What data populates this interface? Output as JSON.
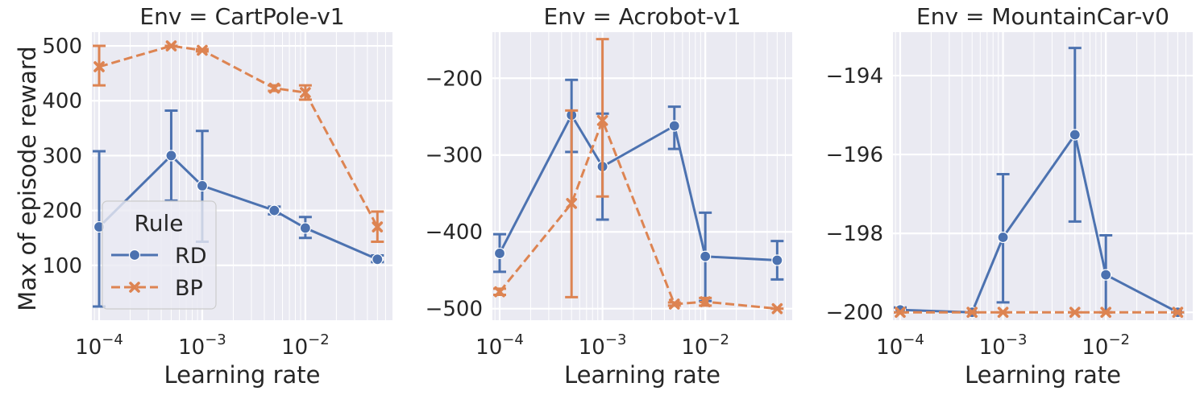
{
  "figure": {
    "ylabel": "Max of episode reward"
  },
  "legend": {
    "title": "Rule",
    "placement": "lower-left (first panel)",
    "entries": [
      {
        "name": "RD",
        "marker": "circle",
        "line": "solid"
      },
      {
        "name": "BP",
        "marker": "x",
        "line": "dashed"
      }
    ]
  },
  "colors": {
    "RD": "#4c72b0",
    "BP": "#dd8452",
    "panel_bg": "#eaeaf2",
    "grid": "#ffffff",
    "text": "#262626"
  },
  "chart_data": [
    {
      "type": "line",
      "title": "Env = CartPole-v1",
      "xlabel": "Learning rate",
      "xscale": "log",
      "xlim": [
        8.5e-05,
        0.07
      ],
      "ylim": [
        0,
        525
      ],
      "xticks": [
        0.0001,
        0.001,
        0.01
      ],
      "xtick_labels": [
        [
          "10",
          "−4"
        ],
        [
          "10",
          "−3"
        ],
        [
          "10",
          "−2"
        ]
      ],
      "yticks": [
        100,
        200,
        300,
        400,
        500
      ],
      "ytick_labels": [
        "100",
        "200",
        "300",
        "400",
        "500"
      ],
      "grid": true,
      "x": [
        0.0001,
        0.0005,
        0.001,
        0.005,
        0.01,
        0.05
      ],
      "series": [
        {
          "name": "RD",
          "values": [
            170,
            300,
            245,
            200,
            168,
            111
          ],
          "err_low": [
            25,
            218,
            143,
            193,
            150,
            106
          ],
          "err_high": [
            308,
            382,
            345,
            207,
            188,
            118
          ]
        },
        {
          "name": "BP",
          "values": [
            462,
            500,
            492,
            423,
            415,
            170
          ],
          "err_low": [
            428,
            500,
            490,
            418,
            402,
            143
          ],
          "err_high": [
            500,
            500,
            494,
            428,
            428,
            198
          ]
        }
      ]
    },
    {
      "type": "line",
      "title": "Env = Acrobot-v1",
      "xlabel": "Learning rate",
      "xscale": "log",
      "xlim": [
        8.5e-05,
        0.07
      ],
      "ylim": [
        -515,
        -140
      ],
      "xticks": [
        0.0001,
        0.001,
        0.01
      ],
      "xtick_labels": [
        [
          "10",
          "−4"
        ],
        [
          "10",
          "−3"
        ],
        [
          "10",
          "−2"
        ]
      ],
      "yticks": [
        -200,
        -300,
        -400,
        -500
      ],
      "ytick_labels": [
        "−200",
        "−300",
        "−400",
        "−500"
      ],
      "grid": true,
      "x": [
        0.0001,
        0.0005,
        0.001,
        0.005,
        0.01,
        0.05
      ],
      "series": [
        {
          "name": "RD",
          "values": [
            -428,
            -248,
            -315,
            -262,
            -432,
            -437
          ],
          "err_low": [
            -452,
            -296,
            -384,
            -292,
            -490,
            -462
          ],
          "err_high": [
            -403,
            -202,
            -246,
            -237,
            -375,
            -412
          ]
        },
        {
          "name": "BP",
          "values": [
            -478,
            -363,
            -255,
            -494,
            -491,
            -500
          ],
          "err_low": [
            -482,
            -485,
            -354,
            -496,
            -496,
            -500
          ],
          "err_high": [
            -474,
            -242,
            -149,
            -492,
            -486,
            -500
          ]
        }
      ]
    },
    {
      "type": "line",
      "title": "Env = MountainCar-v0",
      "xlabel": "Learning rate",
      "xscale": "log",
      "xlim": [
        8.5e-05,
        0.07
      ],
      "ylim": [
        -200.2,
        -192.9
      ],
      "xticks": [
        0.0001,
        0.001,
        0.01
      ],
      "xtick_labels": [
        [
          "10",
          "−4"
        ],
        [
          "10",
          "−3"
        ],
        [
          "10",
          "−2"
        ]
      ],
      "yticks": [
        -194,
        -196,
        -198,
        -200
      ],
      "ytick_labels": [
        "−194",
        "−196",
        "−198",
        "−200"
      ],
      "grid": true,
      "x": [
        0.0001,
        0.0005,
        0.001,
        0.005,
        0.01,
        0.05
      ],
      "series": [
        {
          "name": "RD",
          "values": [
            -199.94,
            -200,
            -198.1,
            -195.5,
            -199.05,
            -200
          ],
          "err_low": [
            -200,
            -200,
            -199.75,
            -197.7,
            -200,
            -200
          ],
          "err_high": [
            -199.88,
            -200,
            -196.5,
            -193.3,
            -198.05,
            -200
          ]
        },
        {
          "name": "BP",
          "values": [
            -200,
            -200,
            -200,
            -200,
            -200,
            -200
          ],
          "err_low": [
            -200,
            -200,
            -200,
            -200,
            -200,
            -200
          ],
          "err_high": [
            -200,
            -200,
            -200,
            -200,
            -200,
            -200
          ]
        }
      ]
    }
  ]
}
